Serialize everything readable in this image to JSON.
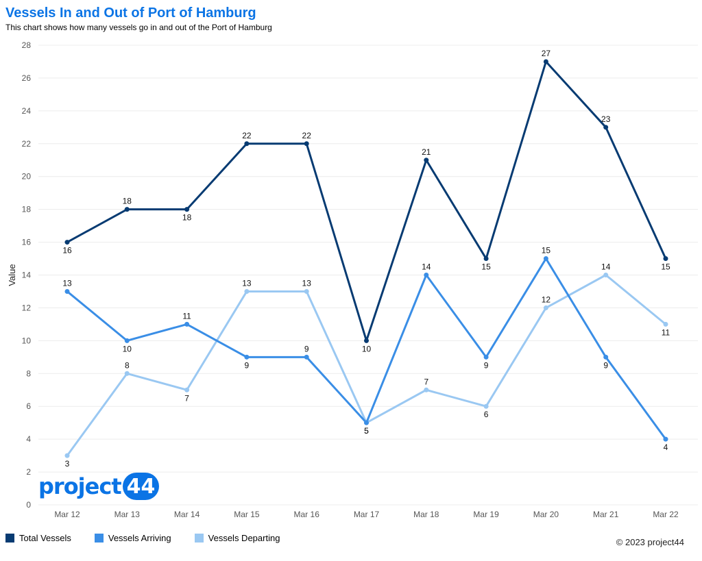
{
  "title": "Vessels In and Out of Port of Hamburg",
  "subtitle": "This chart shows how many vessels go in and out of the Port of Hamburg",
  "copyright": "© 2023 project44",
  "logo": {
    "text": "project",
    "badge": "44"
  },
  "colors": {
    "title": "#0b74e5",
    "total": "#073b72",
    "arriving": "#3a8ee6",
    "departing": "#9ac8f2",
    "grid": "#ececec"
  },
  "chart_data": {
    "type": "line",
    "title": "Vessels In and Out of Port of Hamburg",
    "xlabel": "",
    "ylabel": "Value",
    "categories": [
      "Mar 12",
      "Mar 13",
      "Mar 14",
      "Mar 15",
      "Mar 16",
      "Mar 17",
      "Mar 18",
      "Mar 19",
      "Mar 20",
      "Mar 21",
      "Mar 22"
    ],
    "ylim": [
      0,
      28
    ],
    "yticks": [
      0,
      2,
      4,
      6,
      8,
      10,
      12,
      14,
      16,
      18,
      20,
      22,
      24,
      26,
      28
    ],
    "grid": true,
    "legend": "bottom-left",
    "series": [
      {
        "name": "Total Vessels",
        "color": "#073b72",
        "values": [
          16,
          18,
          18,
          22,
          22,
          10,
          21,
          15,
          27,
          23,
          15
        ],
        "label_pos": [
          "below",
          "above",
          "below",
          "above",
          "above",
          "below",
          "above",
          "below",
          "above",
          "above",
          "below"
        ]
      },
      {
        "name": "Vessels Arriving",
        "color": "#3a8ee6",
        "values": [
          13,
          10,
          11,
          9,
          9,
          5,
          14,
          9,
          15,
          9,
          4
        ],
        "label_pos": [
          "above",
          "below",
          "above",
          "below",
          "above",
          "below",
          "above",
          "below",
          "above",
          "below",
          "below"
        ]
      },
      {
        "name": "Vessels Departing",
        "color": "#9ac8f2",
        "values": [
          3,
          8,
          7,
          13,
          13,
          5,
          7,
          6,
          12,
          14,
          11
        ],
        "label_pos": [
          "below",
          "above",
          "below",
          "above",
          "above",
          "below",
          "above",
          "below",
          "above",
          "above",
          "below"
        ]
      }
    ]
  }
}
